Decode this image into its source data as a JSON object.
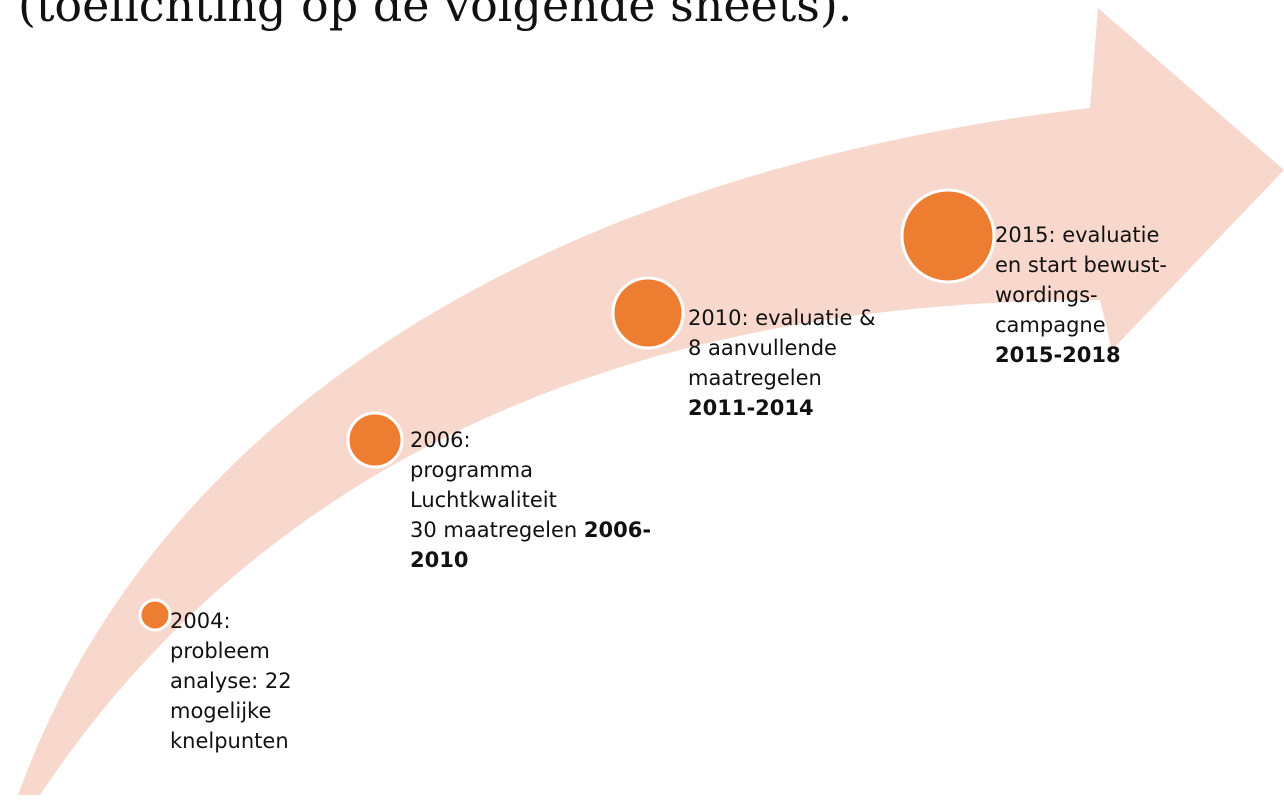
{
  "title": "(toelichting op de volgende sheets).",
  "milestones": [
    {
      "lines": [
        {
          "text": "2004:"
        },
        {
          "text": "probleem"
        },
        {
          "text": "analyse: 22"
        },
        {
          "text": "mogelijke"
        },
        {
          "text": "knelpunten"
        }
      ]
    },
    {
      "lines": [
        {
          "text": "2006:"
        },
        {
          "text": "programma"
        },
        {
          "text": "Luchtkwaliteit"
        },
        {
          "text": "30 maatregelen",
          "bold": "2006-"
        },
        {
          "bold": "2010"
        }
      ]
    },
    {
      "lines": [
        {
          "text": "2010: evaluatie &"
        },
        {
          "text": "8 aanvullende"
        },
        {
          "text": "maatregelen"
        },
        {
          "bold": "2011-2014"
        }
      ]
    },
    {
      "lines": [
        {
          "text": "2015: evaluatie"
        },
        {
          "text": "en start bewust-"
        },
        {
          "text": "wordings-"
        },
        {
          "text": "campagne"
        },
        {
          "bold": "2015-2018"
        }
      ]
    }
  ]
}
